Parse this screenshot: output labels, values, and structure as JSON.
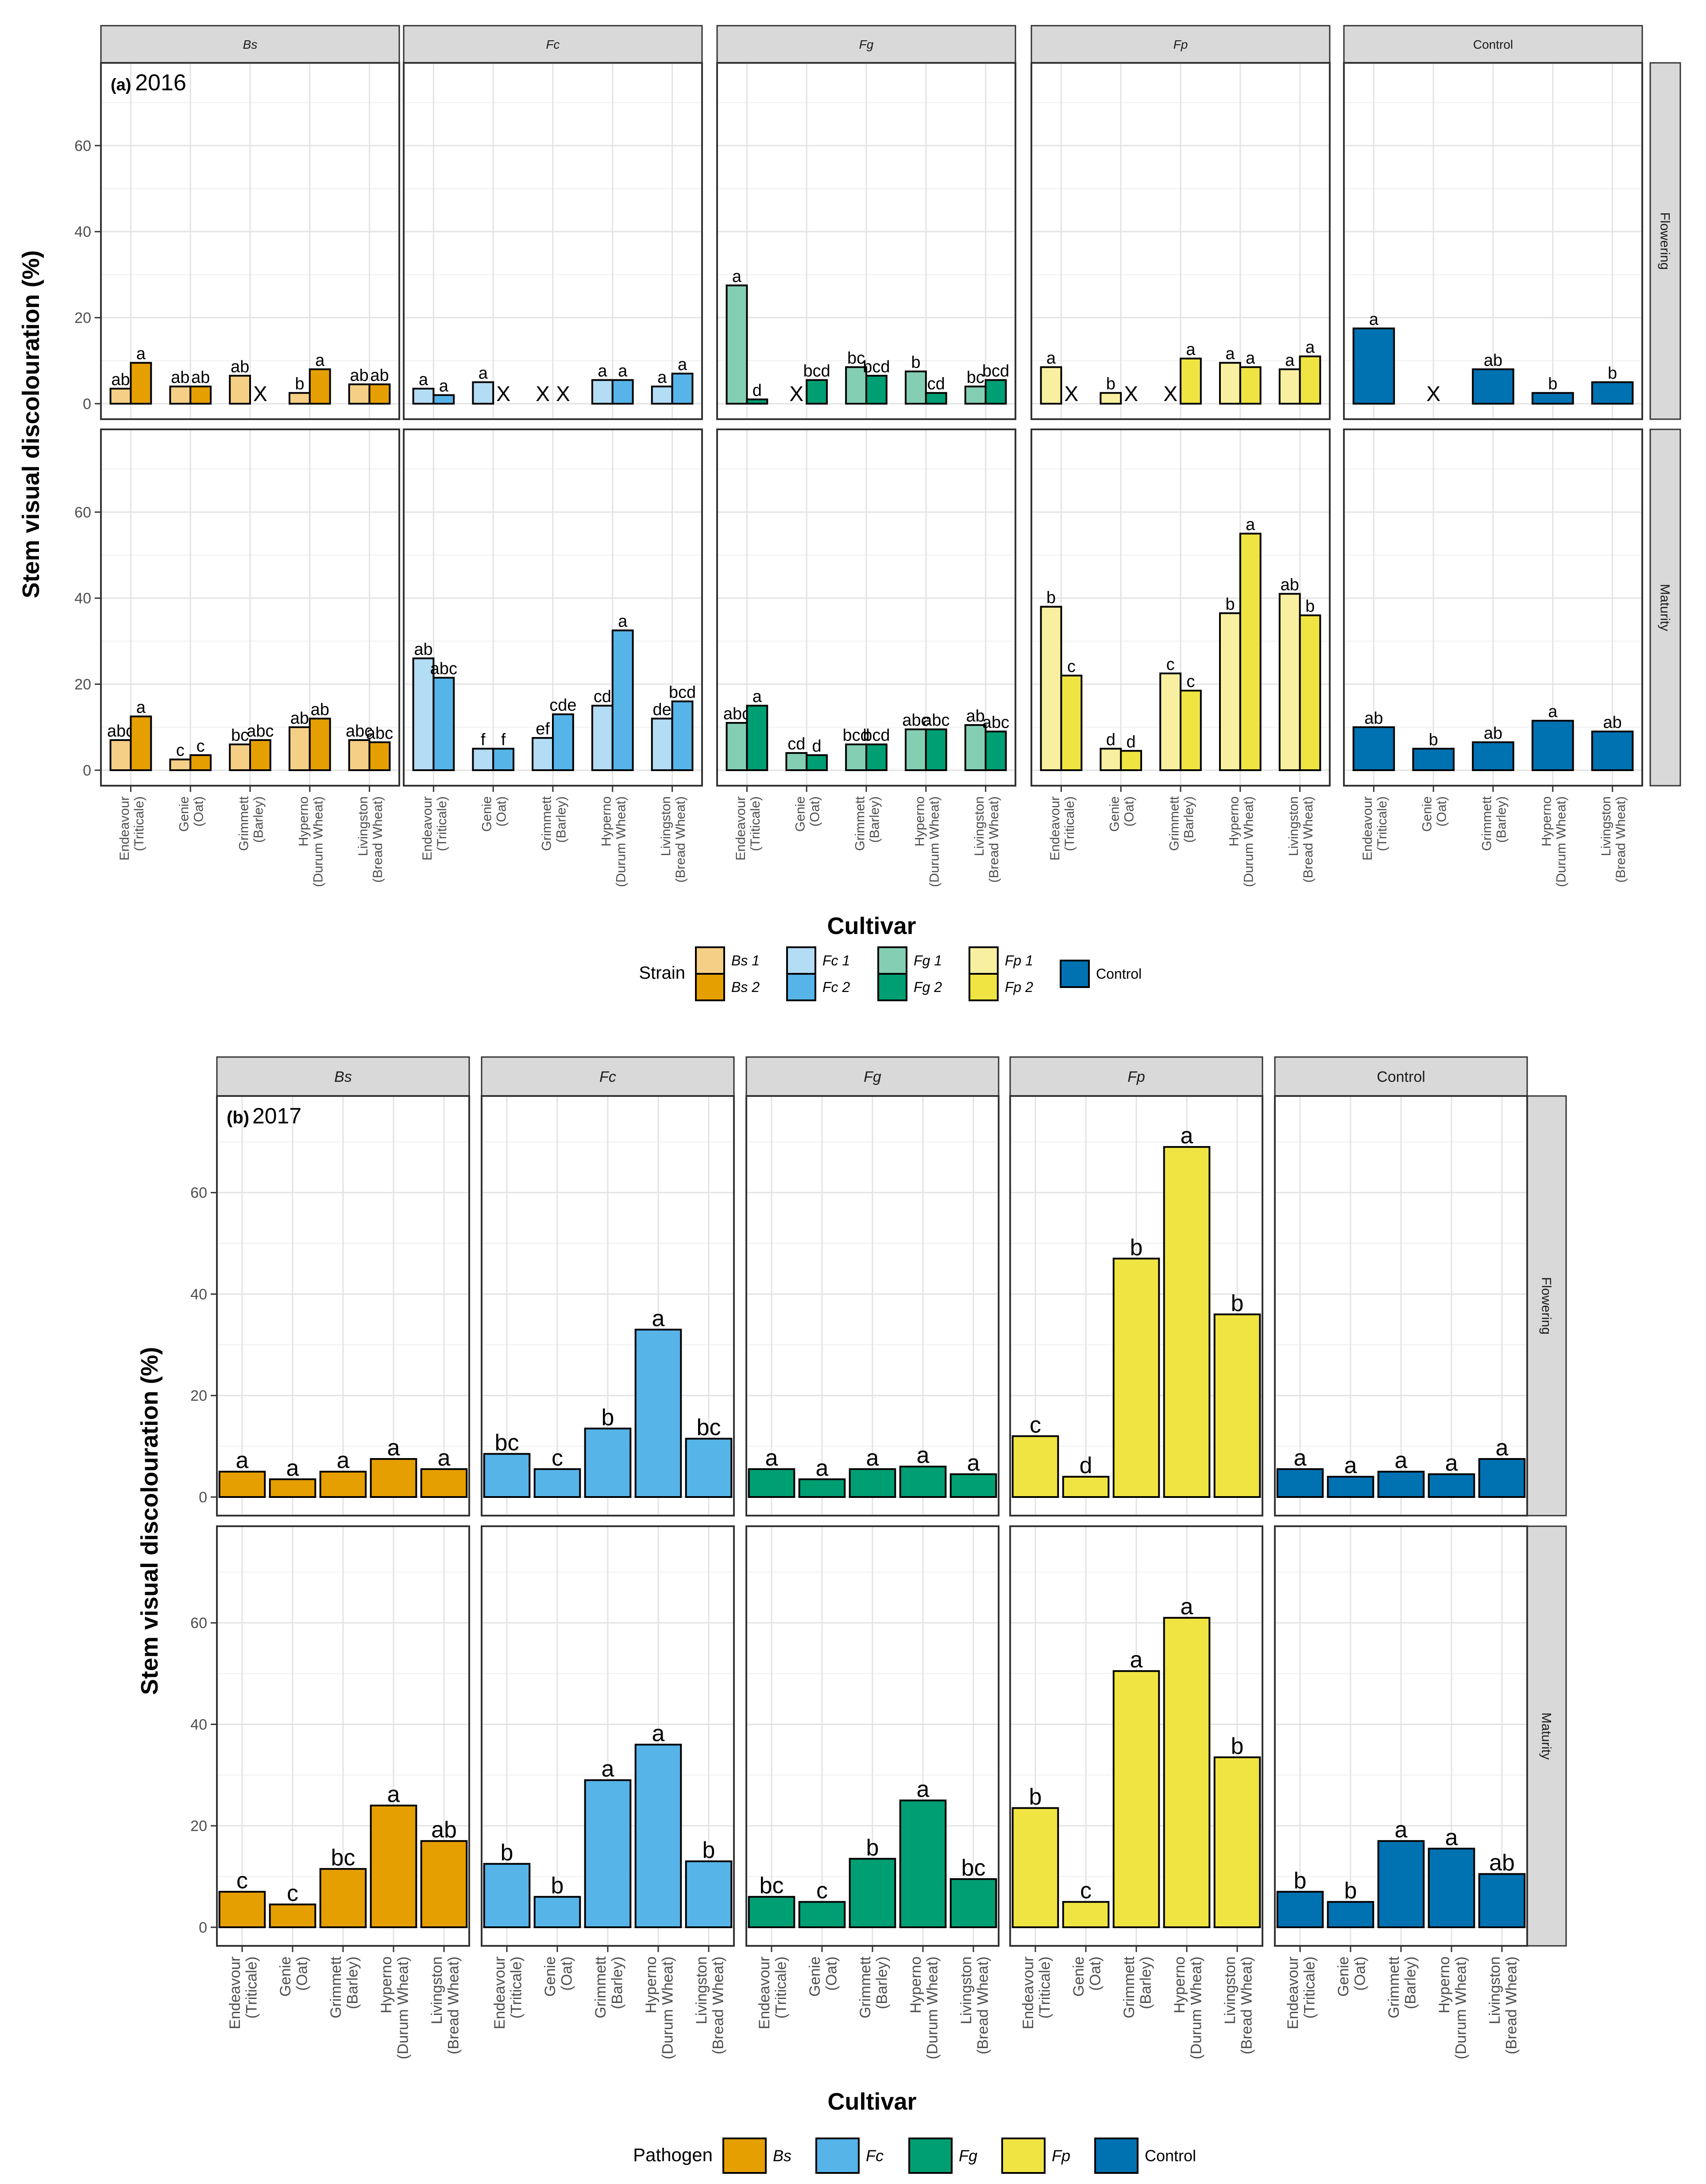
{
  "chart_data": [
    {
      "panel_label": "(a)",
      "title": "2016",
      "type": "bar",
      "xlabel": "Cultivar",
      "ylabel": "Stem visual discolouration (%)",
      "ylim": [
        0,
        78
      ],
      "yticks": [
        0,
        20,
        40,
        60
      ],
      "grid": true,
      "legend_position": "bottom",
      "legend_title": "Strain",
      "legend_entries": [
        {
          "pair": [
            {
              "label": "Bs 1",
              "color": "#f5cf85"
            },
            {
              "label": "Bs 2",
              "color": "#e69f00"
            }
          ]
        },
        {
          "pair": [
            {
              "label": "Fc 1",
              "color": "#b3dcf5"
            },
            {
              "label": "Fc 2",
              "color": "#56b4e9"
            }
          ]
        },
        {
          "pair": [
            {
              "label": "Fg 1",
              "color": "#84cfb3"
            },
            {
              "label": "Fg 2",
              "color": "#009e73"
            }
          ]
        },
        {
          "pair": [
            {
              "label": "Fp 1",
              "color": "#f8f0a0"
            },
            {
              "label": "Fp 2",
              "color": "#f0e442"
            }
          ]
        },
        {
          "single": {
            "label": "Control",
            "color": "#0072b2"
          }
        }
      ],
      "facet_columns": [
        "Bs",
        "Fc",
        "Fg",
        "Fp",
        "Control"
      ],
      "facet_rows": [
        "Flowering",
        "Maturity"
      ],
      "categories": [
        "Endeavour (Triticale)",
        "Genie (Oat)",
        "Grimmett (Barley)",
        "Hyperno (Durum Wheat)",
        "Livingston (Bread Wheat)"
      ],
      "category_lines": [
        [
          "Endeavour",
          "(Triticale)"
        ],
        [
          "Genie",
          "(Oat)"
        ],
        [
          "Grimmett",
          "(Barley)"
        ],
        [
          "Hyperno",
          "(Durum Wheat)"
        ],
        [
          "Livingston",
          "(Bread Wheat)"
        ]
      ],
      "missing_marker": "X",
      "panels": [
        {
          "row": "Flowering",
          "col": "Bs",
          "series": [
            {
              "name": "Bs 1",
              "color": "#f5cf85",
              "values": [
                3.5,
                4,
                6.5,
                2.5,
                4.5
              ],
              "labels": [
                "ab",
                "ab",
                "ab",
                "b",
                "ab"
              ]
            },
            {
              "name": "Bs 2",
              "color": "#e69f00",
              "values": [
                9.5,
                4,
                null,
                8,
                4.5
              ],
              "labels": [
                "a",
                "ab",
                "X",
                "a",
                "ab"
              ]
            }
          ]
        },
        {
          "row": "Flowering",
          "col": "Fc",
          "series": [
            {
              "name": "Fc 1",
              "color": "#b3dcf5",
              "values": [
                3.5,
                5,
                null,
                5.5,
                4
              ],
              "labels": [
                "a",
                "a",
                "X",
                "a",
                "a"
              ]
            },
            {
              "name": "Fc 2",
              "color": "#56b4e9",
              "values": [
                2,
                null,
                null,
                5.5,
                7
              ],
              "labels": [
                "a",
                "X",
                "X",
                "a",
                "a"
              ]
            }
          ]
        },
        {
          "row": "Flowering",
          "col": "Fg",
          "series": [
            {
              "name": "Fg 1",
              "color": "#84cfb3",
              "values": [
                27.5,
                null,
                8.5,
                7.5,
                4
              ],
              "labels": [
                "a",
                "X",
                "bc",
                "b",
                "bc"
              ]
            },
            {
              "name": "Fg 2",
              "color": "#009e73",
              "values": [
                1,
                5.5,
                6.5,
                2.5,
                5.5
              ],
              "labels": [
                "d",
                "bcd",
                "bcd",
                "cd",
                "bcd"
              ]
            }
          ]
        },
        {
          "row": "Flowering",
          "col": "Fp",
          "series": [
            {
              "name": "Fp 1",
              "color": "#f8f0a0",
              "values": [
                8.5,
                2.5,
                null,
                9.5,
                8
              ],
              "labels": [
                "a",
                "b",
                "X",
                "a",
                "a"
              ]
            },
            {
              "name": "Fp 2",
              "color": "#f0e442",
              "values": [
                null,
                null,
                10.5,
                8.5,
                11
              ],
              "labels": [
                "X",
                "X",
                "a",
                "a",
                "a"
              ]
            }
          ]
        },
        {
          "row": "Flowering",
          "col": "Control",
          "series": [
            {
              "name": "Control",
              "color": "#0072b2",
              "values": [
                17.5,
                null,
                8,
                2.5,
                5
              ],
              "labels": [
                "a",
                "X",
                "ab",
                "b",
                "b"
              ]
            }
          ]
        },
        {
          "row": "Maturity",
          "col": "Bs",
          "series": [
            {
              "name": "Bs 1",
              "color": "#f5cf85",
              "values": [
                7,
                2.5,
                6,
                10,
                7
              ],
              "labels": [
                "abc",
                "c",
                "bc",
                "ab",
                "abc"
              ]
            },
            {
              "name": "Bs 2",
              "color": "#e69f00",
              "values": [
                12.5,
                3.5,
                7,
                12,
                6.5
              ],
              "labels": [
                "a",
                "c",
                "abc",
                "ab",
                "abc"
              ]
            }
          ]
        },
        {
          "row": "Maturity",
          "col": "Fc",
          "series": [
            {
              "name": "Fc 1",
              "color": "#b3dcf5",
              "values": [
                26,
                5,
                7.5,
                15,
                12
              ],
              "labels": [
                "ab",
                "f",
                "ef",
                "cd",
                "de"
              ]
            },
            {
              "name": "Fc 2",
              "color": "#56b4e9",
              "values": [
                21.5,
                5,
                13,
                32.5,
                16
              ],
              "labels": [
                "abc",
                "f",
                "cde",
                "a",
                "bcd"
              ]
            }
          ]
        },
        {
          "row": "Maturity",
          "col": "Fg",
          "series": [
            {
              "name": "Fg 1",
              "color": "#84cfb3",
              "values": [
                11,
                4,
                6,
                9.5,
                10.5
              ],
              "labels": [
                "abc",
                "cd",
                "bcd",
                "abc",
                "ab"
              ]
            },
            {
              "name": "Fg 2",
              "color": "#009e73",
              "values": [
                15,
                3.5,
                6,
                9.5,
                9
              ],
              "labels": [
                "a",
                "d",
                "bcd",
                "abc",
                "abc"
              ]
            }
          ]
        },
        {
          "row": "Maturity",
          "col": "Fp",
          "series": [
            {
              "name": "Fp 1",
              "color": "#f8f0a0",
              "values": [
                38,
                5,
                22.5,
                36.5,
                41
              ],
              "labels": [
                "b",
                "d",
                "c",
                "b",
                "ab"
              ]
            },
            {
              "name": "Fp 2",
              "color": "#f0e442",
              "values": [
                22,
                4.5,
                18.5,
                55,
                36
              ],
              "labels": [
                "c",
                "d",
                "c",
                "a",
                "b"
              ]
            }
          ]
        },
        {
          "row": "Maturity",
          "col": "Control",
          "series": [
            {
              "name": "Control",
              "color": "#0072b2",
              "values": [
                10,
                5,
                6.5,
                11.5,
                9
              ],
              "labels": [
                "ab",
                "b",
                "ab",
                "a",
                "ab"
              ]
            }
          ]
        }
      ]
    },
    {
      "panel_label": "(b)",
      "title": "2017",
      "type": "bar",
      "xlabel": "Cultivar",
      "ylabel": "Stem visual discolouration (%)",
      "ylim": [
        0,
        78
      ],
      "yticks": [
        0,
        20,
        40,
        60
      ],
      "grid": true,
      "legend_position": "bottom",
      "legend_title": "Pathogen",
      "legend_entries": [
        {
          "label": "Bs",
          "color": "#e69f00"
        },
        {
          "label": "Fc",
          "color": "#56b4e9"
        },
        {
          "label": "Fg",
          "color": "#009e73"
        },
        {
          "label": "Fp",
          "color": "#f0e442"
        },
        {
          "label": "Control",
          "color": "#0072b2"
        }
      ],
      "facet_columns": [
        "Bs",
        "Fc",
        "Fg",
        "Fp",
        "Control"
      ],
      "facet_rows": [
        "Flowering",
        "Maturity"
      ],
      "categories": [
        "Endeavour (Triticale)",
        "Genie (Oat)",
        "Grimmett (Barley)",
        "Hyperno (Durum Wheat)",
        "Livingston (Bread Wheat)"
      ],
      "category_lines": [
        [
          "Endeavour",
          "(Triticale)"
        ],
        [
          "Genie",
          "(Oat)"
        ],
        [
          "Grimmett",
          "(Barley)"
        ],
        [
          "Hyperno",
          "(Durum Wheat)"
        ],
        [
          "Livingston",
          "(Bread Wheat)"
        ]
      ],
      "panels": [
        {
          "row": "Flowering",
          "col": "Bs",
          "series": [
            {
              "name": "Bs",
              "color": "#e69f00",
              "values": [
                5,
                3.5,
                5,
                7.5,
                5.5
              ],
              "labels": [
                "a",
                "a",
                "a",
                "a",
                "a"
              ]
            }
          ]
        },
        {
          "row": "Flowering",
          "col": "Fc",
          "series": [
            {
              "name": "Fc",
              "color": "#56b4e9",
              "values": [
                8.5,
                5.5,
                13.5,
                33,
                11.5
              ],
              "labels": [
                "bc",
                "c",
                "b",
                "a",
                "bc"
              ]
            }
          ]
        },
        {
          "row": "Flowering",
          "col": "Fg",
          "series": [
            {
              "name": "Fg",
              "color": "#009e73",
              "values": [
                5.5,
                3.5,
                5.5,
                6,
                4.5
              ],
              "labels": [
                "a",
                "a",
                "a",
                "a",
                "a"
              ]
            }
          ]
        },
        {
          "row": "Flowering",
          "col": "Fp",
          "series": [
            {
              "name": "Fp",
              "color": "#f0e442",
              "values": [
                12,
                4,
                47,
                69,
                36
              ],
              "labels": [
                "c",
                "d",
                "b",
                "a",
                "b"
              ]
            }
          ]
        },
        {
          "row": "Flowering",
          "col": "Control",
          "series": [
            {
              "name": "Control",
              "color": "#0072b2",
              "values": [
                5.5,
                4,
                5,
                4.5,
                7.5
              ],
              "labels": [
                "a",
                "a",
                "a",
                "a",
                "a"
              ]
            }
          ]
        },
        {
          "row": "Maturity",
          "col": "Bs",
          "series": [
            {
              "name": "Bs",
              "color": "#e69f00",
              "values": [
                7,
                4.5,
                11.5,
                24,
                17
              ],
              "labels": [
                "c",
                "c",
                "bc",
                "a",
                "ab"
              ]
            }
          ]
        },
        {
          "row": "Maturity",
          "col": "Fc",
          "series": [
            {
              "name": "Fc",
              "color": "#56b4e9",
              "values": [
                12.5,
                6,
                29,
                36,
                13
              ],
              "labels": [
                "b",
                "b",
                "a",
                "a",
                "b"
              ]
            }
          ]
        },
        {
          "row": "Maturity",
          "col": "Fg",
          "series": [
            {
              "name": "Fg",
              "color": "#009e73",
              "values": [
                6,
                5,
                13.5,
                25,
                9.5
              ],
              "labels": [
                "bc",
                "c",
                "b",
                "a",
                "bc"
              ]
            }
          ]
        },
        {
          "row": "Maturity",
          "col": "Fp",
          "series": [
            {
              "name": "Fp",
              "color": "#f0e442",
              "values": [
                23.5,
                5,
                50.5,
                61,
                33.5
              ],
              "labels": [
                "b",
                "c",
                "a",
                "a",
                "b"
              ]
            }
          ]
        },
        {
          "row": "Maturity",
          "col": "Control",
          "series": [
            {
              "name": "Control",
              "color": "#0072b2",
              "values": [
                7,
                5,
                17,
                15.5,
                10.5
              ],
              "labels": [
                "b",
                "b",
                "a",
                "a",
                "ab"
              ]
            }
          ]
        }
      ]
    }
  ]
}
